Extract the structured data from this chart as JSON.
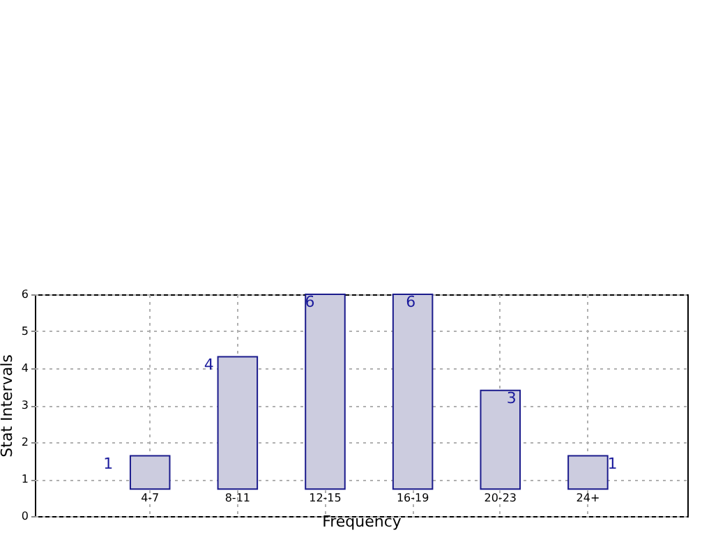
{
  "chart_data": {
    "type": "bar",
    "xlabel": "Frequency",
    "ylabel": "Stat Intervals",
    "categories": [
      "4-7",
      "8-11",
      "12-15",
      "16-19",
      "20-23",
      "24+"
    ],
    "base": [
      0.73,
      0.73,
      0.73,
      0.73,
      0.73,
      0.73
    ],
    "values": [
      0.9,
      3.58,
      5.27,
      5.27,
      2.67,
      0.9
    ],
    "color": "#ccccdf",
    "ylim": [
      0,
      6
    ],
    "yticks": [
      0,
      1,
      2,
      3,
      4,
      5,
      6
    ],
    "grid": true,
    "annotations": [
      "1",
      "4",
      "6",
      "6",
      "3",
      "1"
    ]
  }
}
